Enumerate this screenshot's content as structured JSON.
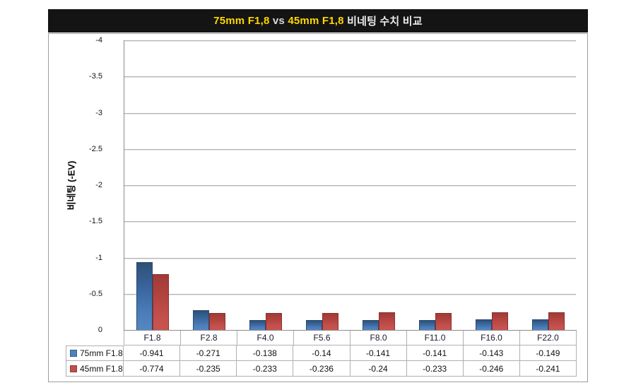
{
  "title": {
    "segments": [
      {
        "text": "75mm F1,8",
        "style": "accent"
      },
      {
        "text": " vs ",
        "style": "vs"
      },
      {
        "text": "45mm F1,8",
        "style": "accent"
      },
      {
        "text": "비네팅 수치 비교",
        "style": "plain"
      }
    ],
    "full": "75mm F1,8 vs 45mm F1,8 비네팅 수치 비교"
  },
  "colors": {
    "title_bg": "#141414",
    "title_accent": "#ffd800",
    "series_blue": "#4f81bd",
    "series_red": "#c0504d",
    "gridline": "#b3b3b3",
    "frame_border": "#9d9d9d"
  },
  "chart_data": {
    "type": "bar",
    "title": "75mm F1,8 vs 45mm F1,8 비네팅 수치 비교",
    "xlabel": "",
    "ylabel": "비네팅 (-EV)",
    "categories": [
      "F1.8",
      "F2.8",
      "F4.0",
      "F5.6",
      "F8.0",
      "F11.0",
      "F16.0",
      "F22.0"
    ],
    "series": [
      {
        "name": "75mm F1.8",
        "color": "#4f81bd",
        "values": [
          -0.941,
          -0.271,
          -0.138,
          -0.14,
          -0.141,
          -0.141,
          -0.143,
          -0.149
        ]
      },
      {
        "name": "45mm F1.8",
        "color": "#c0504d",
        "values": [
          -0.774,
          -0.235,
          -0.233,
          -0.236,
          -0.24,
          -0.233,
          -0.246,
          -0.241
        ]
      }
    ],
    "y_ticks": [
      "-4",
      "-3.5",
      "-3",
      "-2.5",
      "-2",
      "-1.5",
      "-1",
      "-0.5",
      "0"
    ],
    "ylim": [
      0,
      -4
    ],
    "axis_inverted": true,
    "grid": true,
    "legend_position": "data-table-left",
    "data_table": true
  }
}
